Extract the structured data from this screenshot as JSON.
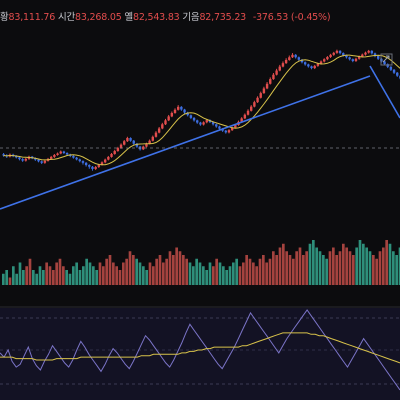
{
  "header": {
    "items": [
      {
        "label": "황",
        "value": "83,111.76"
      },
      {
        "label": "시간",
        "value": "83,268.05"
      },
      {
        "label": "옐",
        "value": "82,543.83"
      },
      {
        "label": "기음",
        "value": "82,735.23"
      }
    ],
    "change": "-376.53 (-0.45%)",
    "colors": {
      "up": "#e24d4d",
      "down": "#3d6ee0",
      "label": "#c9cbd1"
    }
  },
  "overlay": {
    "settings_icon": "expand-arrows-icon"
  },
  "chart_data": [
    {
      "type": "candlestick",
      "title": "",
      "candles": [
        [
          50.5,
          50.0,
          51.0,
          49.5
        ],
        [
          50.0,
          49.6,
          50.5,
          49.0
        ],
        [
          49.6,
          50.3,
          50.8,
          49.2
        ],
        [
          50.3,
          49.8,
          50.7,
          49.3
        ],
        [
          49.8,
          49.2,
          50.1,
          48.8
        ],
        [
          49.2,
          48.5,
          49.6,
          48.0
        ],
        [
          48.5,
          47.9,
          48.9,
          47.4
        ],
        [
          47.9,
          48.6,
          49.0,
          47.5
        ],
        [
          48.6,
          49.5,
          49.9,
          48.2
        ],
        [
          49.5,
          48.9,
          49.8,
          48.5
        ],
        [
          48.9,
          48.3,
          49.2,
          47.8
        ],
        [
          48.3,
          47.6,
          48.6,
          47.2
        ],
        [
          47.6,
          47.0,
          47.9,
          46.5
        ],
        [
          47.0,
          47.8,
          48.1,
          46.6
        ],
        [
          47.8,
          48.6,
          49.0,
          47.5
        ],
        [
          48.6,
          49.4,
          49.8,
          48.3
        ],
        [
          49.4,
          50.2,
          50.6,
          49.0
        ],
        [
          50.2,
          50.8,
          51.2,
          49.9
        ],
        [
          50.8,
          51.6,
          52.0,
          50.5
        ],
        [
          51.6,
          51.0,
          51.9,
          50.6
        ],
        [
          51.0,
          50.4,
          51.3,
          50.0
        ],
        [
          50.4,
          49.8,
          50.7,
          49.3
        ],
        [
          49.8,
          49.1,
          50.1,
          48.7
        ],
        [
          49.1,
          48.4,
          49.4,
          48.0
        ],
        [
          48.4,
          47.7,
          48.7,
          47.2
        ],
        [
          47.7,
          47.0,
          48.0,
          46.3
        ],
        [
          47.0,
          46.1,
          47.3,
          45.5
        ],
        [
          46.1,
          45.4,
          46.4,
          44.6
        ],
        [
          45.4,
          44.5,
          45.7,
          43.8
        ],
        [
          44.5,
          45.3,
          45.7,
          44.1
        ],
        [
          45.3,
          46.2,
          46.6,
          44.9
        ],
        [
          46.2,
          47.2,
          47.6,
          45.9
        ],
        [
          47.2,
          48.3,
          48.7,
          46.8
        ],
        [
          48.3,
          49.4,
          49.8,
          48.0
        ],
        [
          49.4,
          50.6,
          51.0,
          49.1
        ],
        [
          50.6,
          51.8,
          52.3,
          50.3
        ],
        [
          51.8,
          53.0,
          53.5,
          51.5
        ],
        [
          53.0,
          54.4,
          54.9,
          52.7
        ],
        [
          54.4,
          55.8,
          56.3,
          54.1
        ],
        [
          55.8,
          57.1,
          57.6,
          55.5
        ],
        [
          57.1,
          56.0,
          57.4,
          55.6
        ],
        [
          56.0,
          54.8,
          56.3,
          54.3
        ],
        [
          54.8,
          53.6,
          55.1,
          53.1
        ],
        [
          53.6,
          52.5,
          53.9,
          52.0
        ],
        [
          52.5,
          53.6,
          54.0,
          52.2
        ],
        [
          53.6,
          54.8,
          55.2,
          53.3
        ],
        [
          54.8,
          56.0,
          56.5,
          54.5
        ],
        [
          56.0,
          57.6,
          58.1,
          55.7
        ],
        [
          57.6,
          59.3,
          59.9,
          57.3
        ],
        [
          59.3,
          61.0,
          61.6,
          59.0
        ],
        [
          61.0,
          62.7,
          63.3,
          60.7
        ],
        [
          62.7,
          64.3,
          64.9,
          62.4
        ],
        [
          64.3,
          65.9,
          66.5,
          64.0
        ],
        [
          65.9,
          67.3,
          67.9,
          65.6
        ],
        [
          67.3,
          68.6,
          69.2,
          67.0
        ],
        [
          68.6,
          69.8,
          70.5,
          68.3
        ],
        [
          69.8,
          68.7,
          70.1,
          68.2
        ],
        [
          68.7,
          67.5,
          69.0,
          67.0
        ],
        [
          67.5,
          66.4,
          67.8,
          65.9
        ],
        [
          66.4,
          65.3,
          66.7,
          64.8
        ],
        [
          65.3,
          64.3,
          65.6,
          63.8
        ],
        [
          64.3,
          63.4,
          64.6,
          62.9
        ],
        [
          63.4,
          62.6,
          63.7,
          62.1
        ],
        [
          62.6,
          63.5,
          63.9,
          62.2
        ],
        [
          63.5,
          64.4,
          64.8,
          63.1
        ],
        [
          64.4,
          63.6,
          64.7,
          63.2
        ],
        [
          63.6,
          62.7,
          63.9,
          62.2
        ],
        [
          62.7,
          61.8,
          63.0,
          61.3
        ],
        [
          61.8,
          60.9,
          62.1,
          60.4
        ],
        [
          60.9,
          60.1,
          61.2,
          59.6
        ],
        [
          60.1,
          59.4,
          60.4,
          58.9
        ],
        [
          59.4,
          60.3,
          60.7,
          59.0
        ],
        [
          60.3,
          61.3,
          61.7,
          60.0
        ],
        [
          61.3,
          62.4,
          62.8,
          61.0
        ],
        [
          62.4,
          63.7,
          64.2,
          62.1
        ],
        [
          63.7,
          65.1,
          65.6,
          63.4
        ],
        [
          65.1,
          66.6,
          67.1,
          64.8
        ],
        [
          66.6,
          68.2,
          68.8,
          66.3
        ],
        [
          68.2,
          69.9,
          70.5,
          67.9
        ],
        [
          69.9,
          71.7,
          72.3,
          69.6
        ],
        [
          71.7,
          73.5,
          74.1,
          71.4
        ],
        [
          73.5,
          75.4,
          76.0,
          73.2
        ],
        [
          75.4,
          77.3,
          78.0,
          75.1
        ],
        [
          77.3,
          79.2,
          79.9,
          77.0
        ],
        [
          79.2,
          81.1,
          81.8,
          78.9
        ],
        [
          81.1,
          82.9,
          83.6,
          80.8
        ],
        [
          82.9,
          84.6,
          85.3,
          82.6
        ],
        [
          84.6,
          86.2,
          86.9,
          84.3
        ],
        [
          86.2,
          87.6,
          88.3,
          85.9
        ],
        [
          87.6,
          88.9,
          89.6,
          87.3
        ],
        [
          88.9,
          90.0,
          90.7,
          88.6
        ],
        [
          90.0,
          91.0,
          91.7,
          89.7
        ],
        [
          91.0,
          90.0,
          91.3,
          89.5
        ],
        [
          90.0,
          89.0,
          90.3,
          88.5
        ],
        [
          89.0,
          88.0,
          89.3,
          87.5
        ],
        [
          88.0,
          87.1,
          88.3,
          86.6
        ],
        [
          87.1,
          86.3,
          87.4,
          85.8
        ],
        [
          86.3,
          85.6,
          86.6,
          85.1
        ],
        [
          85.6,
          86.5,
          86.9,
          85.2
        ],
        [
          86.5,
          87.4,
          87.8,
          86.1
        ],
        [
          87.4,
          88.3,
          88.7,
          87.0
        ],
        [
          88.3,
          89.2,
          89.6,
          87.9
        ],
        [
          89.2,
          90.1,
          90.5,
          88.8
        ],
        [
          90.1,
          91.0,
          91.4,
          89.7
        ],
        [
          91.0,
          91.8,
          92.2,
          90.6
        ],
        [
          91.8,
          92.6,
          93.1,
          91.4
        ],
        [
          92.6,
          91.7,
          92.9,
          91.2
        ],
        [
          91.7,
          90.8,
          92.0,
          90.3
        ],
        [
          90.8,
          90.0,
          91.1,
          89.5
        ],
        [
          90.0,
          89.2,
          90.3,
          88.7
        ],
        [
          89.2,
          88.5,
          89.5,
          88.0
        ],
        [
          88.5,
          89.4,
          89.8,
          88.1
        ],
        [
          89.4,
          90.3,
          90.7,
          89.0
        ],
        [
          90.3,
          91.1,
          91.5,
          89.9
        ],
        [
          91.1,
          91.9,
          92.3,
          90.7
        ],
        [
          91.9,
          92.6,
          93.0,
          91.5
        ],
        [
          92.6,
          91.6,
          92.9,
          91.1
        ],
        [
          91.6,
          90.5,
          91.9,
          90.0
        ],
        [
          90.5,
          89.4,
          90.8,
          88.9
        ],
        [
          89.4,
          88.3,
          89.7,
          87.8
        ],
        [
          88.3,
          87.2,
          88.6,
          86.7
        ],
        [
          87.2,
          86.1,
          87.5,
          85.6
        ],
        [
          86.1,
          84.9,
          86.4,
          84.4
        ],
        [
          84.9,
          83.7,
          85.2,
          83.2
        ],
        [
          83.7,
          82.5,
          84.0,
          82.0
        ],
        [
          82.5,
          81.3,
          82.8,
          80.8
        ]
      ],
      "moving_average": "yellow",
      "trendlines": [
        "rising support",
        "descending from peak"
      ],
      "horizontal_dashed_line": true
    },
    {
      "type": "bar",
      "title": "",
      "series": [
        {
          "values": [
            3,
            4,
            2,
            5,
            3,
            6,
            4,
            5,
            7,
            4,
            3,
            5,
            4,
            6,
            5,
            4,
            6,
            7,
            5,
            4,
            3,
            5,
            6,
            4,
            5,
            7,
            6,
            5,
            4,
            6,
            5,
            7,
            8,
            6,
            5,
            4,
            6,
            7,
            9,
            8,
            7,
            6,
            5,
            4,
            6,
            5,
            7,
            8,
            6,
            7,
            9,
            8,
            10,
            9,
            8,
            7,
            6,
            5,
            7,
            6,
            5,
            4,
            6,
            5,
            7,
            6,
            5,
            4,
            5,
            6,
            7,
            5,
            6,
            8,
            7,
            6,
            5,
            7,
            8,
            6,
            7,
            9,
            8,
            10,
            11,
            9,
            8,
            7,
            9,
            10,
            8,
            9,
            11,
            12,
            10,
            9,
            8,
            7,
            9,
            10,
            8,
            9,
            11,
            10,
            9,
            8,
            10,
            12,
            11,
            10,
            9,
            8,
            7,
            9,
            10,
            12,
            11,
            9,
            8,
            10
          ]
        }
      ]
    },
    {
      "type": "line",
      "title": "",
      "series": [
        {
          "values": [
            58,
            55,
            60,
            52,
            48,
            50,
            56,
            62,
            54,
            49,
            46,
            52,
            57,
            63,
            59,
            55,
            51,
            48,
            53,
            60,
            66,
            62,
            57,
            53,
            49,
            45,
            50,
            56,
            61,
            58,
            54,
            50,
            47,
            52,
            58,
            64,
            70,
            67,
            63,
            59,
            55,
            51,
            48,
            53,
            59,
            65,
            72,
            78,
            74,
            70,
            66,
            62,
            58,
            54,
            50,
            47,
            52,
            57,
            62,
            68,
            74,
            80,
            86,
            82,
            78,
            74,
            70,
            66,
            62,
            58,
            63,
            68,
            72,
            76,
            80,
            84,
            88,
            84,
            80,
            76,
            72,
            68,
            64,
            60,
            56,
            52,
            48,
            53,
            58,
            63,
            68,
            64,
            60,
            56,
            52,
            48,
            44,
            40,
            36,
            32
          ]
        },
        {
          "values": [
            55,
            55,
            55,
            55,
            54,
            54,
            54,
            54,
            54,
            53,
            53,
            53,
            53,
            53,
            54,
            54,
            54,
            54,
            54,
            54,
            55,
            55,
            55,
            55,
            55,
            55,
            55,
            55,
            55,
            55,
            55,
            55,
            55,
            55,
            55,
            56,
            56,
            56,
            57,
            57,
            57,
            57,
            57,
            57,
            57,
            58,
            58,
            59,
            59,
            60,
            60,
            61,
            61,
            62,
            62,
            62,
            62,
            62,
            62,
            62,
            63,
            63,
            64,
            65,
            66,
            67,
            68,
            69,
            70,
            71,
            72,
            72,
            72,
            72,
            72,
            72,
            72,
            71,
            71,
            70,
            70,
            69,
            68,
            67,
            66,
            65,
            64,
            63,
            62,
            61,
            60,
            59,
            58,
            57,
            56,
            55,
            54,
            53,
            52,
            51
          ]
        }
      ]
    }
  ]
}
